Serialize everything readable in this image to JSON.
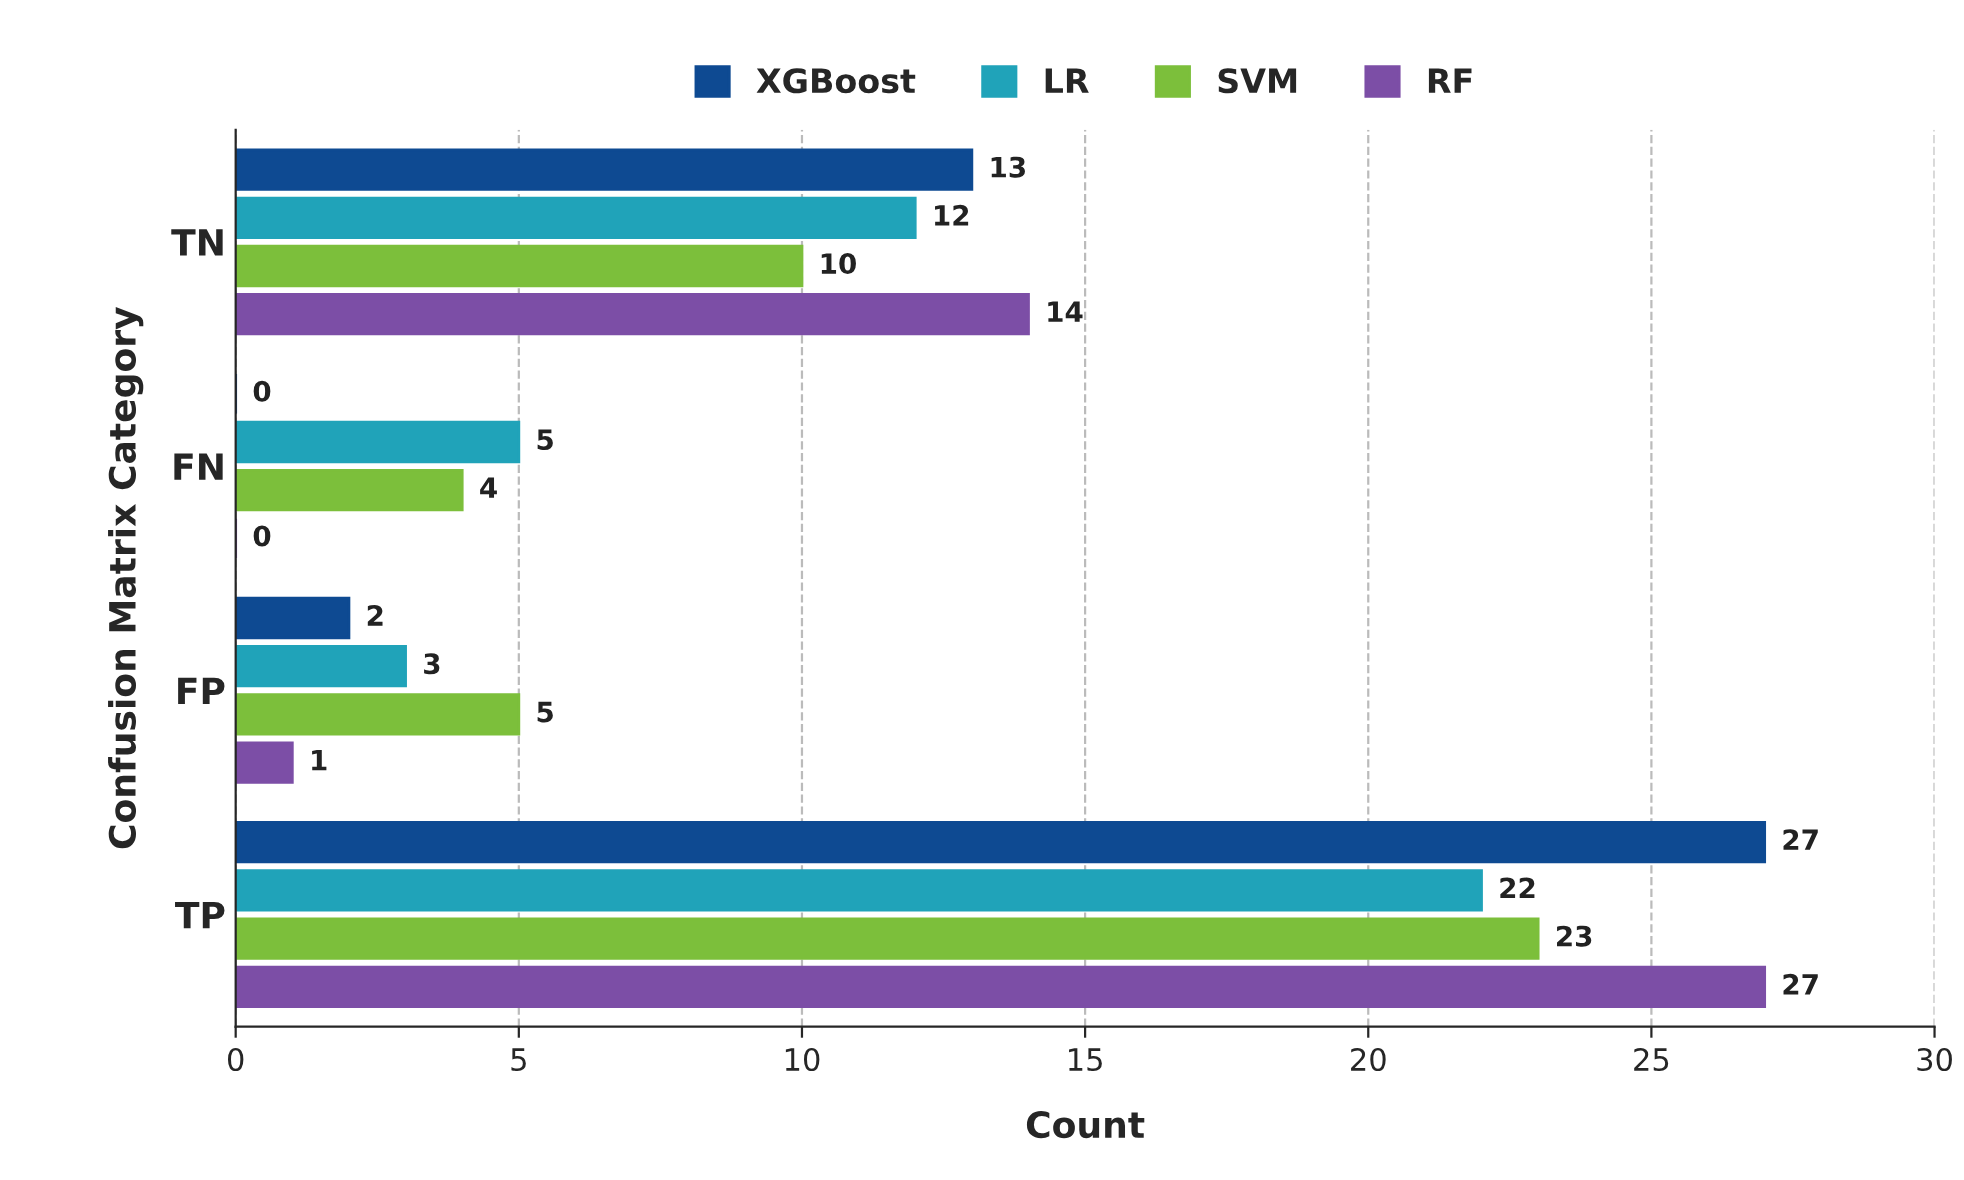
{
  "chart_data": {
    "type": "bar",
    "orientation": "horizontal",
    "xlabel": "Count",
    "ylabel": "Confusion Matrix Category",
    "categories": [
      "TN",
      "FN",
      "FP",
      "TP"
    ],
    "series": [
      {
        "name": "XGBoost",
        "color": "#0e4a92",
        "values": [
          13,
          0,
          2,
          27
        ]
      },
      {
        "name": "LR",
        "color": "#20a3b9",
        "values": [
          12,
          5,
          3,
          22
        ]
      },
      {
        "name": "SVM",
        "color": "#7cbf3b",
        "values": [
          10,
          4,
          5,
          23
        ]
      },
      {
        "name": "RF",
        "color": "#7c4ea6",
        "values": [
          14,
          0,
          1,
          27
        ]
      }
    ],
    "xlim": [
      0,
      30
    ],
    "xticks": [
      0,
      5,
      10,
      15,
      20,
      25,
      30
    ],
    "grid": "x",
    "legend": "top",
    "data_labels": true
  }
}
